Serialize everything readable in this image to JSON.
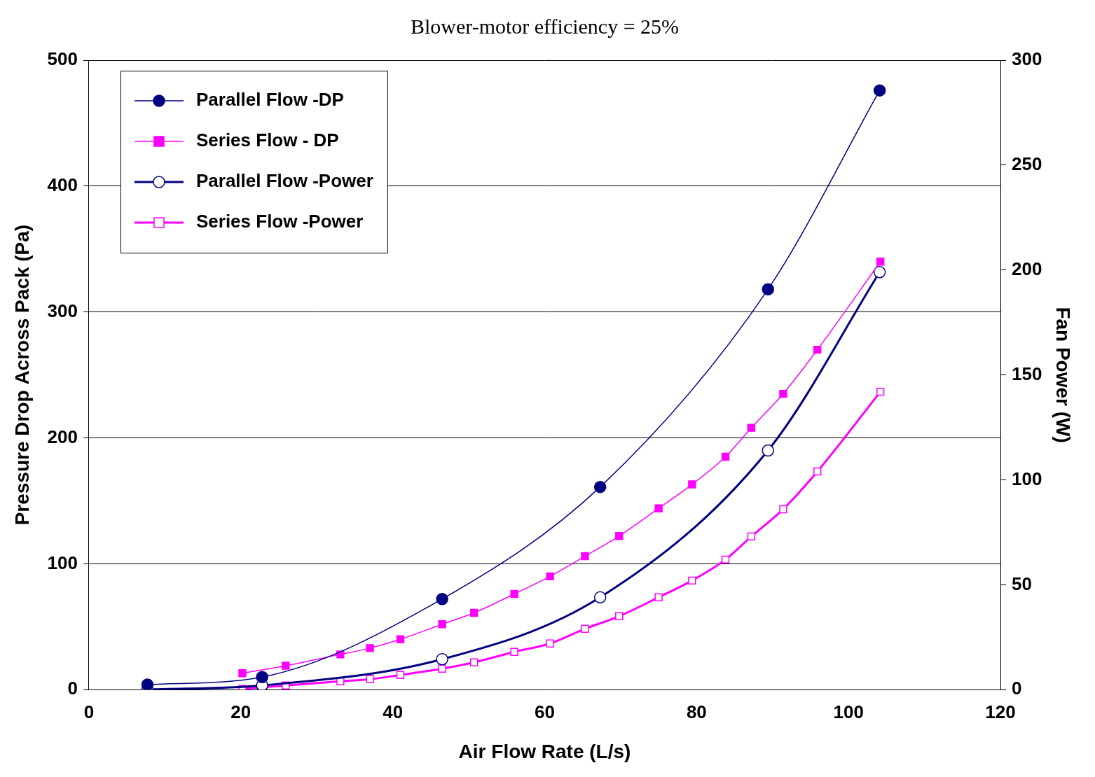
{
  "chart_data": {
    "type": "line",
    "title": "Blower-motor efficiency = 25%",
    "x_label": "Air Flow Rate (L/s)",
    "y_label": "Pressure Drop Across Pack (Pa)",
    "y2_label": "Fan Power (W)",
    "xlim": [
      0,
      120
    ],
    "xticks": [
      0,
      20,
      40,
      60,
      80,
      100,
      120
    ],
    "ylim": [
      0,
      500
    ],
    "yticks": [
      0,
      100,
      200,
      300,
      400,
      500
    ],
    "y2lim": [
      0,
      300
    ],
    "y2ticks": [
      0,
      50,
      100,
      150,
      200,
      250,
      300
    ],
    "grid": true,
    "legend": "upper left",
    "series": [
      {
        "name": "Parallel Flow -DP",
        "color": "#000080",
        "marker": "circle",
        "line_style": "solid",
        "x": [
          7.7,
          22.8,
          46.5,
          67.3,
          89.4,
          104.1
        ],
        "values": [
          4,
          10,
          72,
          161,
          318,
          476
        ]
      },
      {
        "name": "Series Flow - DP",
        "color": "#ff00ff",
        "marker": "square",
        "line_style": "solid",
        "x": [
          20.2,
          25.9,
          33.1,
          37,
          41,
          46.5,
          50.7,
          56,
          60.7,
          65.3,
          69.8,
          75,
          79.4,
          83.8,
          87.2,
          91.4,
          95.9,
          104.2
        ],
        "values": [
          13,
          19,
          28,
          33,
          40,
          52,
          61,
          76,
          90,
          106,
          122,
          144,
          163,
          185,
          208,
          235,
          270,
          340
        ]
      },
      {
        "name": "Parallel Flow -Power",
        "color": "#000080",
        "marker": "circle-open",
        "line_style": "solid",
        "axis": "y2",
        "x": [
          7.7,
          22.8,
          46.5,
          67.3,
          89.4,
          104.1
        ],
        "values": [
          0,
          2,
          14.5,
          44,
          114,
          199
        ]
      },
      {
        "name": "Series Flow -Power",
        "color": "#ff00ff",
        "marker": "square-open",
        "line_style": "solid",
        "axis": "y2",
        "x": [
          20.2,
          25.9,
          33.1,
          37,
          41,
          46.5,
          50.7,
          56,
          60.7,
          65.3,
          69.8,
          75,
          79.4,
          83.8,
          87.2,
          91.4,
          95.9,
          104.2
        ],
        "values": [
          0.3,
          2,
          4,
          5,
          7,
          10,
          13,
          18,
          22,
          29,
          35,
          44,
          52,
          62,
          73,
          86,
          104,
          142
        ]
      }
    ]
  }
}
